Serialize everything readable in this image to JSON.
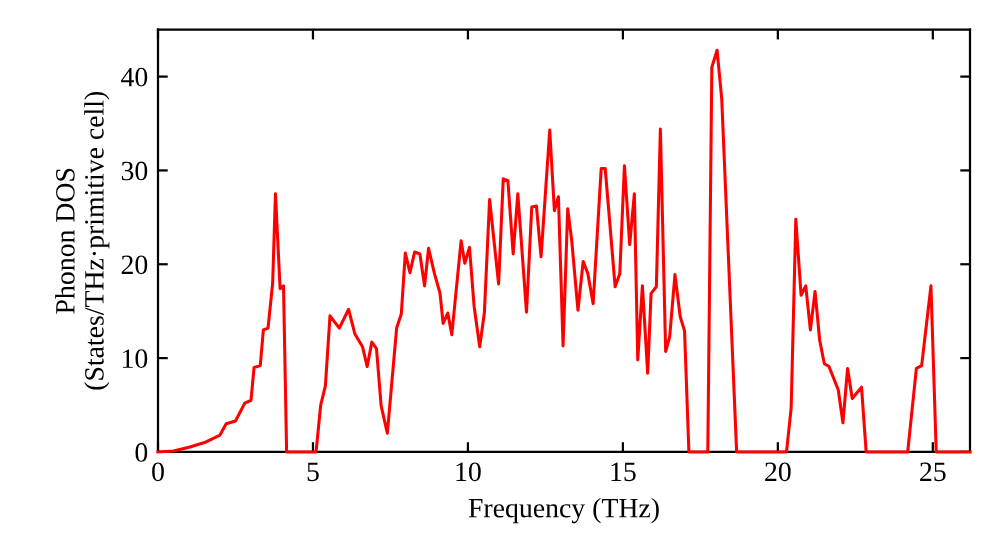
{
  "chart_data": {
    "type": "line",
    "xlabel": "Frequency (THz)",
    "ylabel": "Phonon DOS\n(States/THz·primitive cell)",
    "xlim": [
      0,
      26.2
    ],
    "ylim": [
      0,
      45
    ],
    "xticks": [
      0,
      5,
      10,
      15,
      20,
      25
    ],
    "yticks": [
      0,
      10,
      20,
      30,
      40
    ],
    "grid": false,
    "marker": "none",
    "line_style": "solid",
    "x": [
      0,
      0.5,
      1,
      1.5,
      2,
      2.2,
      2.5,
      2.8,
      3.0,
      3.1,
      3.3,
      3.4,
      3.55,
      3.7,
      3.79,
      3.94,
      4.05,
      4.15,
      5.1,
      5.25,
      5.4,
      5.55,
      5.85,
      6.15,
      6.35,
      6.6,
      6.75,
      6.9,
      7.05,
      7.2,
      7.4,
      7.7,
      7.85,
      7.98,
      8.13,
      8.28,
      8.45,
      8.6,
      8.73,
      8.92,
      9.1,
      9.2,
      9.35,
      9.48,
      9.78,
      9.9,
      10.05,
      10.2,
      10.38,
      10.53,
      10.7,
      10.99,
      11.14,
      11.29,
      11.46,
      11.61,
      11.89,
      12.06,
      12.21,
      12.36,
      12.64,
      12.79,
      12.92,
      13.07,
      13.22,
      13.35,
      13.55,
      13.72,
      13.87,
      14.04,
      14.3,
      14.43,
      14.75,
      14.9,
      15.05,
      15.22,
      15.37,
      15.48,
      15.63,
      15.8,
      15.91,
      16.08,
      16.21,
      16.38,
      16.51,
      16.68,
      16.85,
      16.99,
      17.13,
      17.74,
      17.87,
      18.04,
      18.19,
      18.67,
      20.28,
      20.43,
      20.58,
      20.75,
      20.9,
      21.05,
      21.2,
      21.35,
      21.5,
      21.65,
      21.95,
      22.1,
      22.25,
      22.4,
      22.7,
      22.85,
      24.19,
      24.47,
      24.64,
      24.94,
      25.11,
      26.2
    ],
    "series": [
      {
        "color": "#ff0000",
        "values": [
          0,
          0.1,
          0.5,
          1.0,
          1.8,
          3.0,
          3.3,
          5.2,
          5.5,
          9,
          9.2,
          13,
          13.2,
          18,
          27.5,
          17.4,
          17.7,
          0,
          0,
          5.0,
          7,
          14.5,
          13.2,
          15.2,
          12.6,
          11.2,
          9.1,
          11.7,
          11.0,
          4.9,
          2.0,
          13.2,
          14.7,
          21.2,
          19.1,
          21.3,
          21.1,
          17.7,
          21.7,
          19,
          16.9,
          13.7,
          14.8,
          12.5,
          22.5,
          20.1,
          21.8,
          15.5,
          11.2,
          14.8,
          26.9,
          17.9,
          29.1,
          28.9,
          21.1,
          27.5,
          14.9,
          26.1,
          26.2,
          20.8,
          34.3,
          25.7,
          27.2,
          11.3,
          25.9,
          22.5,
          15.1,
          20.3,
          19.0,
          15.8,
          30.2,
          30.2,
          17.6,
          19.0,
          30.5,
          22.1,
          27.5,
          9.8,
          17.7,
          8.4,
          16.9,
          17.6,
          34.4,
          10.7,
          12.3,
          18.9,
          14.4,
          12.9,
          0,
          0,
          41.0,
          42.8,
          37.6,
          0,
          0,
          4.7,
          24.8,
          16.7,
          17.7,
          13.0,
          17.1,
          11.9,
          9.4,
          9.1,
          6.6,
          3.1,
          8.9,
          5.7,
          6.9,
          0,
          0,
          8.9,
          9.2,
          17.7,
          0,
          0
        ]
      }
    ]
  }
}
